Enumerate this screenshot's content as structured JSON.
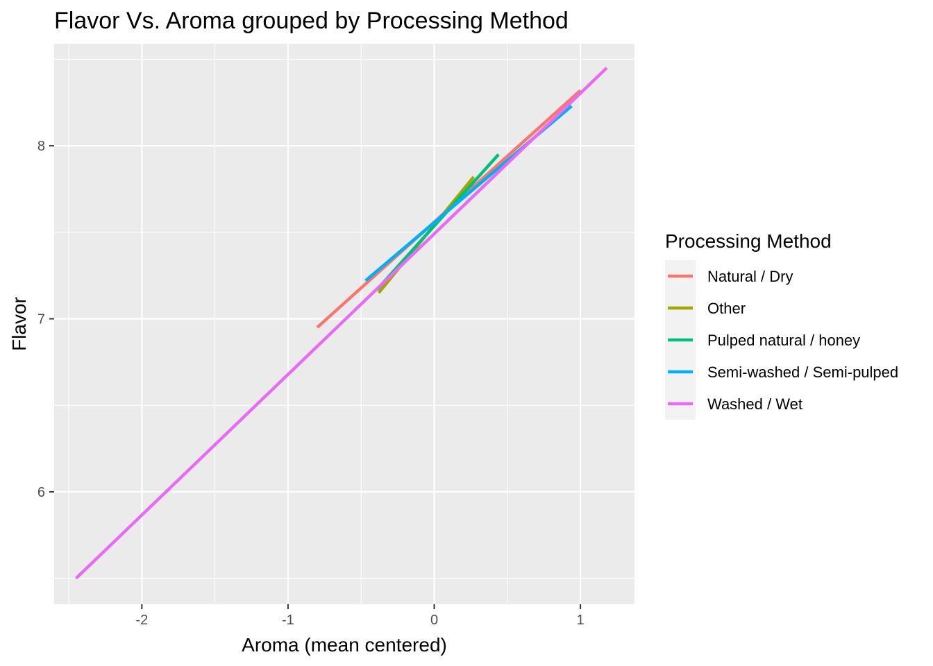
{
  "chart_data": {
    "type": "line",
    "title": "Flavor Vs. Aroma grouped by Processing Method",
    "xlabel": "Aroma (mean centered)",
    "ylabel": "Flavor",
    "xlim": [
      -2.6,
      1.37
    ],
    "ylim": [
      5.35,
      8.59
    ],
    "x_ticks": [
      -2,
      -1,
      0,
      1
    ],
    "y_ticks": [
      6,
      7,
      8
    ],
    "x_tick_labels": [
      "-2",
      "-1",
      "0",
      "1"
    ],
    "y_tick_labels": [
      "6",
      "7",
      "8"
    ],
    "grid": true,
    "panel_background": "#EBEBEB",
    "legend": {
      "title": "Processing Method",
      "position": "right"
    },
    "series": [
      {
        "name": "Natural / Dry",
        "color": "#F8766D",
        "x": [
          -0.8,
          1.0
        ],
        "y": [
          6.95,
          8.32
        ]
      },
      {
        "name": "Other",
        "color": "#A3A500",
        "x": [
          -0.38,
          0.27
        ],
        "y": [
          7.15,
          7.82
        ]
      },
      {
        "name": "Pulped natural / honey",
        "color": "#00BF7D",
        "x": [
          -0.39,
          0.44
        ],
        "y": [
          7.17,
          7.95
        ]
      },
      {
        "name": "Semi-washed / Semi-pulped",
        "color": "#00B0F6",
        "x": [
          -0.47,
          0.94
        ],
        "y": [
          7.22,
          8.23
        ]
      },
      {
        "name": "Washed / Wet",
        "color": "#E76BF3",
        "x": [
          -2.45,
          1.18
        ],
        "y": [
          5.5,
          8.45
        ]
      }
    ]
  }
}
